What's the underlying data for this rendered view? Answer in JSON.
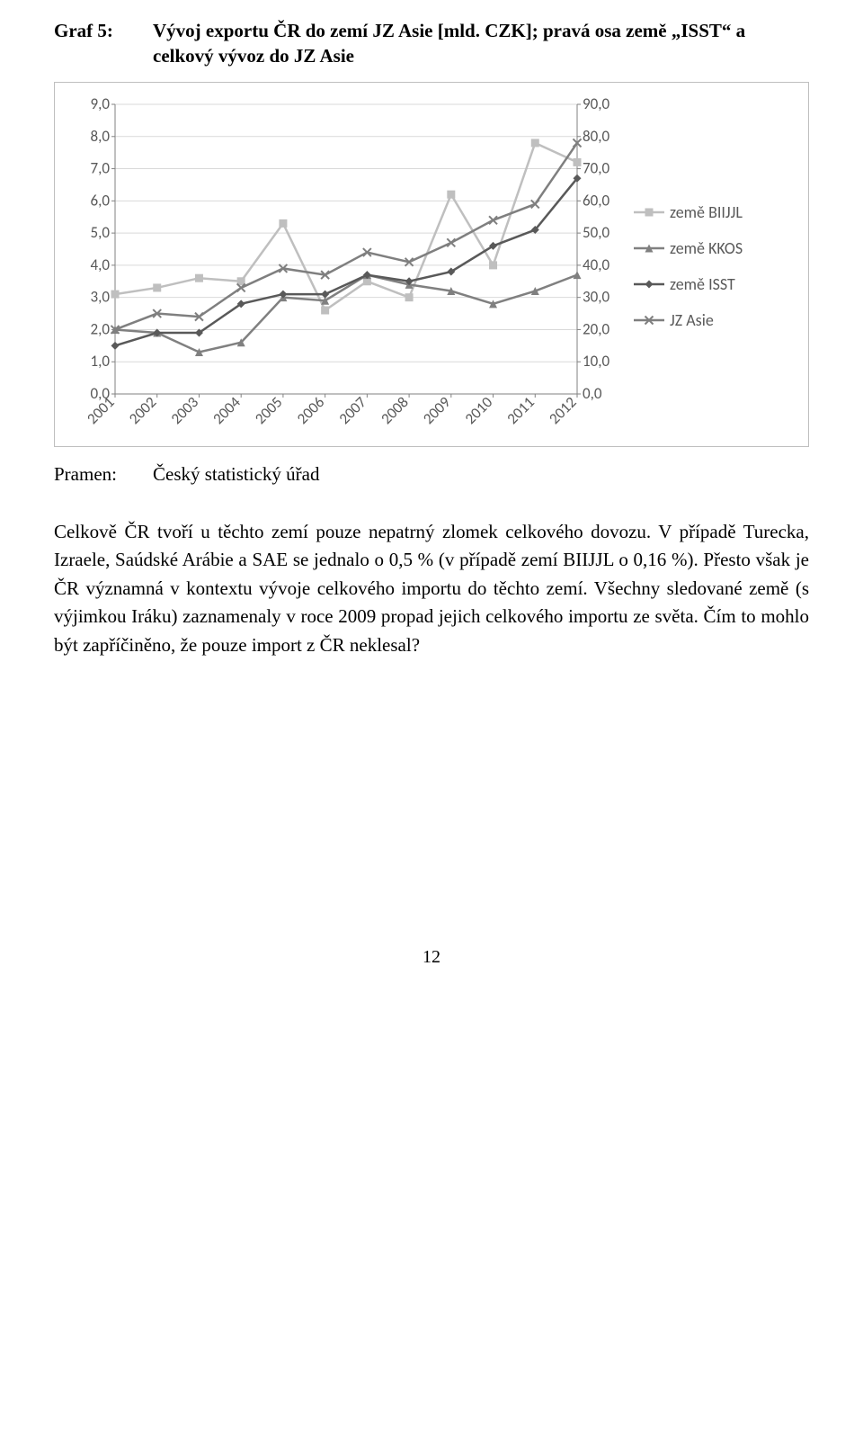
{
  "title": {
    "label": "Graf 5:",
    "text": "Vývoj exportu ČR do zemí JZ Asie [mld. CZK]; pravá osa země „ISST“ a celkový vývoz do JZ Asie"
  },
  "source": {
    "label": "Pramen:",
    "text": "Český statistický úřad"
  },
  "body": {
    "paragraph": "Celkově ČR tvoří u těchto zemí pouze nepatrný zlomek celkového dovozu. V případě Turecka, Izraele, Saúdské Arábie a SAE se jednalo o 0,5 % (v případě zemí BIIJJL o 0,16 %). Přesto však je ČR významná v kontextu vývoje celkového importu do těchto zemí. Všechny sledované země (s výjimkou Iráku) zaznamenaly v roce 2009 propad jejich celkového importu ze světa. Čím to mohlo být zapříčiněno, že pouze import z ČR neklesal?"
  },
  "pagenum": "12",
  "chart": {
    "type": "line",
    "categories": [
      "2001",
      "2002",
      "2003",
      "2004",
      "2005",
      "2006",
      "2007",
      "2008",
      "2009",
      "2010",
      "2011",
      "2012"
    ],
    "left_axis": {
      "min": 0.0,
      "max": 9.0,
      "step": 1.0,
      "ticks": [
        "0,0",
        "1,0",
        "2,0",
        "3,0",
        "4,0",
        "5,0",
        "6,0",
        "7,0",
        "8,0",
        "9,0"
      ]
    },
    "right_axis": {
      "min": 0.0,
      "max": 90.0,
      "step": 10.0,
      "ticks": [
        "0,0",
        "10,0",
        "20,0",
        "30,0",
        "40,0",
        "50,0",
        "60,0",
        "70,0",
        "80,0",
        "90,0"
      ]
    },
    "series": [
      {
        "name": "země BIIJJL",
        "axis": "left",
        "color": "#bfbfbf",
        "marker": "square",
        "marker_size": 9,
        "line_width": 2.5,
        "values": [
          3.1,
          3.3,
          3.6,
          3.5,
          5.3,
          2.6,
          3.5,
          3.0,
          6.2,
          4.0,
          7.8,
          7.2
        ]
      },
      {
        "name": "země KKOS",
        "axis": "left",
        "color": "#808080",
        "marker": "triangle",
        "marker_size": 9,
        "line_width": 2.5,
        "values": [
          2.0,
          1.9,
          1.3,
          1.6,
          3.0,
          2.9,
          3.7,
          3.4,
          3.2,
          2.8,
          3.2,
          3.7
        ]
      },
      {
        "name": "země ISST",
        "axis": "right",
        "color": "#595959",
        "marker": "diamond",
        "marker_size": 9,
        "line_width": 2.5,
        "values": [
          15,
          19,
          19,
          28,
          31,
          31,
          37,
          35,
          38,
          46,
          51,
          67
        ]
      },
      {
        "name": "JZ Asie",
        "axis": "right",
        "color": "#7f7f7f",
        "marker": "x",
        "marker_size": 9,
        "line_width": 2.5,
        "values": [
          20,
          25,
          24,
          33,
          39,
          37,
          44,
          41,
          47,
          54,
          59,
          78
        ]
      }
    ],
    "legend_labels": [
      "země BIIJJL",
      "země KKOS",
      "země ISST",
      "JZ Asie"
    ],
    "axis_label_fontsize": 17,
    "grid_color": "#d9d9d9",
    "grid_on": true,
    "axis_color": "#828282",
    "background_color": "#ffffff",
    "aspect_w": 610,
    "aspect_h": 380
  }
}
